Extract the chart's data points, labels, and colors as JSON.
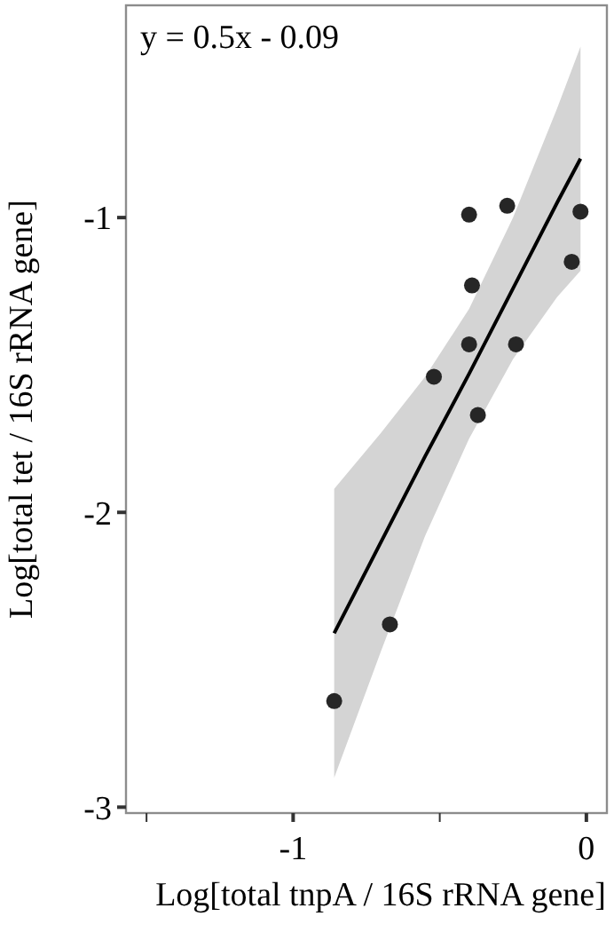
{
  "chart_data": {
    "type": "scatter",
    "xlabel": "Log[total tnpA / 16S rRNA gene]",
    "ylabel": "Log[total tet / 16S rRNA gene]",
    "annotations": [
      "y = 0.5x - 0.09"
    ],
    "xlim": [
      -1.57,
      0.07
    ],
    "ylim": [
      -3.02,
      -0.28
    ],
    "xticks": [
      {
        "value": -1.5,
        "label": null
      },
      -1,
      {
        "value": -0.5,
        "label": null
      },
      0
    ],
    "yticks": [
      -3,
      -2,
      -1
    ],
    "marker": "circle",
    "series": [
      {
        "type": "line",
        "marker": "none",
        "color": "#000000",
        "x": [
          -0.86,
          -0.7,
          -0.55,
          -0.4,
          -0.25,
          -0.1,
          -0.02
        ],
        "values": [
          -2.41,
          -2.1,
          -1.81,
          -1.53,
          -1.24,
          -0.95,
          -0.8
        ],
        "lower": [
          -2.9,
          -2.47,
          -2.08,
          -1.75,
          -1.48,
          -1.27,
          -1.18
        ],
        "upper": [
          -1.92,
          -1.73,
          -1.54,
          -1.31,
          -1.0,
          -0.63,
          -0.42
        ]
      },
      {
        "color": "#262626",
        "x": [
          -0.4,
          -0.27,
          -0.02,
          -0.05,
          -0.39,
          -0.4,
          -0.24,
          -0.52,
          -0.37,
          -0.67,
          -0.86
        ],
        "values": [
          -0.99,
          -0.96,
          -0.98,
          -1.15,
          -1.23,
          -1.43,
          -1.43,
          -1.54,
          -1.67,
          -2.38,
          -2.64
        ]
      }
    ]
  }
}
